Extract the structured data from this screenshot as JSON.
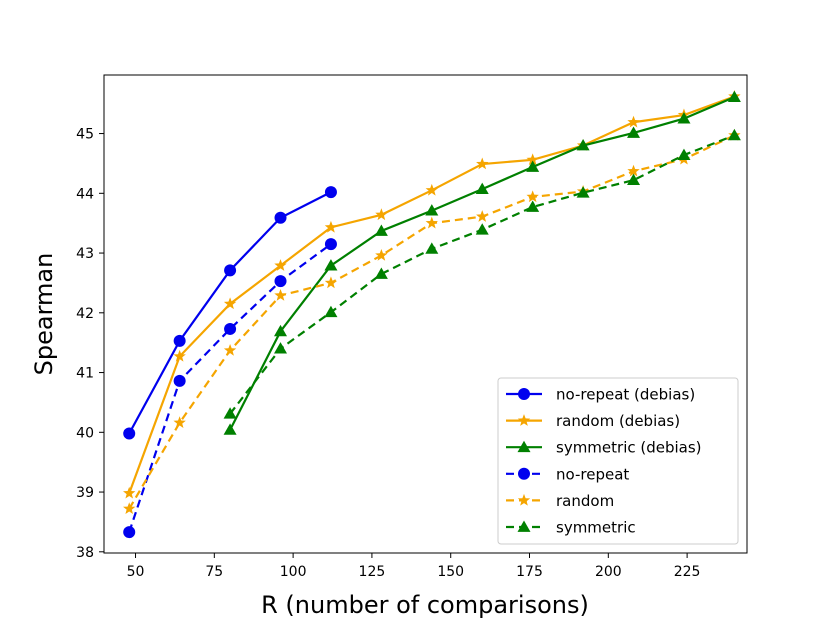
{
  "chart_data": {
    "type": "line",
    "title": "",
    "xlabel": "R (number of comparisons)",
    "ylabel": "Spearman",
    "xlim": [
      40,
      244
    ],
    "ylim": [
      37.98,
      45.98
    ],
    "xticks": [
      50,
      75,
      100,
      125,
      150,
      175,
      200,
      225
    ],
    "yticks": [
      38,
      39,
      40,
      41,
      42,
      43,
      44,
      45
    ],
    "grid": false,
    "legend_position": "lower-right",
    "series": [
      {
        "name": "no-repeat (debias)",
        "color": "#0000ee",
        "dash": "solid",
        "marker": "circle",
        "x": [
          48,
          64,
          80,
          96,
          112
        ],
        "y": [
          39.98,
          41.53,
          42.71,
          43.59,
          44.02
        ]
      },
      {
        "name": "random (debias)",
        "color": "#f5a500",
        "dash": "solid",
        "marker": "star",
        "x": [
          48,
          64,
          80,
          96,
          112,
          128,
          144,
          160,
          176,
          192,
          208,
          224,
          240
        ],
        "y": [
          38.98,
          41.27,
          42.15,
          42.79,
          43.43,
          43.64,
          44.05,
          44.49,
          44.56,
          44.8,
          45.19,
          45.31,
          45.62
        ]
      },
      {
        "name": "symmetric (debias)",
        "color": "#008000",
        "dash": "solid",
        "marker": "triangle",
        "x": [
          80,
          96,
          112,
          128,
          144,
          160,
          176,
          192,
          208,
          224,
          240
        ],
        "y": [
          40.04,
          41.69,
          42.79,
          43.37,
          43.71,
          44.07,
          44.44,
          44.8,
          45.01,
          45.25,
          45.61
        ]
      },
      {
        "name": "no-repeat",
        "color": "#0000ee",
        "dash": "dashed",
        "marker": "circle",
        "x": [
          48,
          64,
          80,
          96,
          112
        ],
        "y": [
          38.33,
          40.86,
          41.73,
          42.53,
          43.15
        ]
      },
      {
        "name": "random",
        "color": "#f5a500",
        "dash": "dashed",
        "marker": "star",
        "x": [
          48,
          64,
          80,
          96,
          112,
          128,
          144,
          160,
          176,
          192,
          208,
          224,
          240
        ],
        "y": [
          38.72,
          40.16,
          41.37,
          42.29,
          42.5,
          42.96,
          43.5,
          43.61,
          43.94,
          44.03,
          44.37,
          44.57,
          44.97
        ]
      },
      {
        "name": "symmetric",
        "color": "#008000",
        "dash": "dashed",
        "marker": "triangle",
        "x": [
          80,
          96,
          112,
          128,
          144,
          160,
          176,
          192,
          208,
          224,
          240
        ],
        "y": [
          40.31,
          41.4,
          42.01,
          42.65,
          43.07,
          43.39,
          43.77,
          44.01,
          44.22,
          44.64,
          44.97
        ]
      }
    ]
  }
}
